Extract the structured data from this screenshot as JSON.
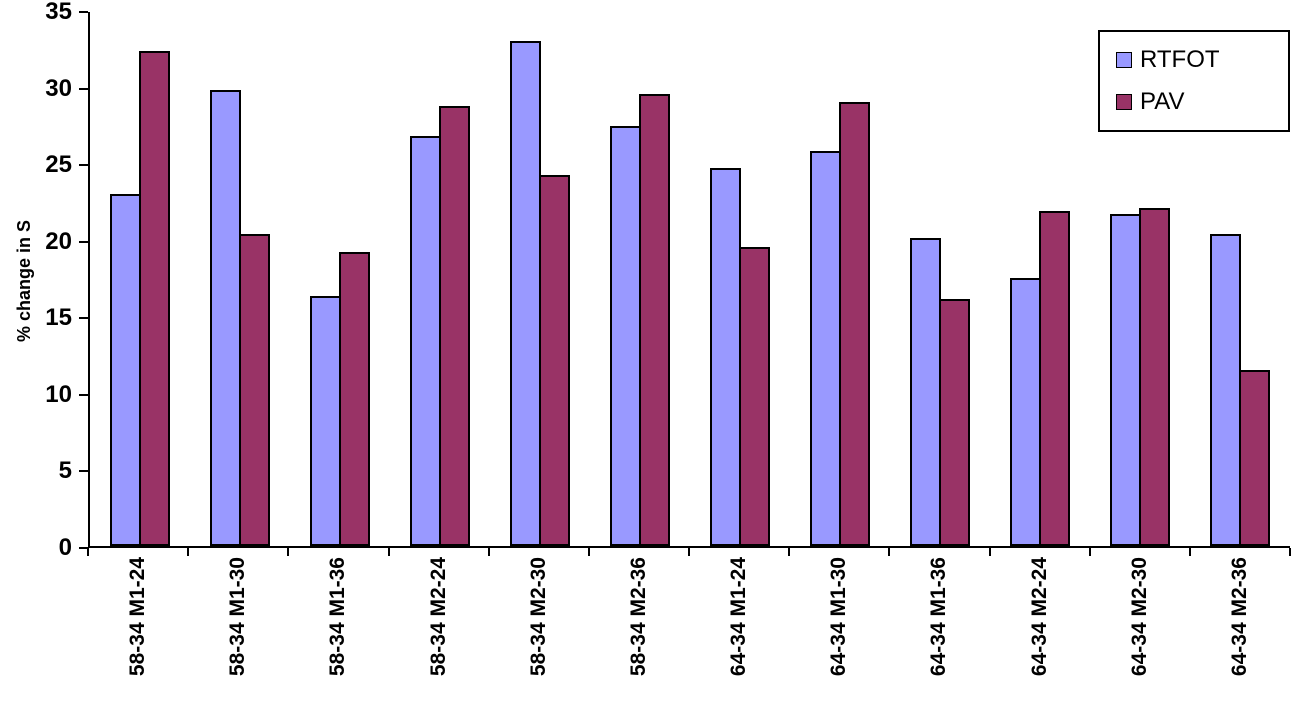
{
  "chart_data": {
    "type": "bar",
    "title": "",
    "xlabel": "",
    "ylabel": "% change in S",
    "ylim": [
      0,
      35
    ],
    "ymax": 35,
    "yticks": [
      0,
      5,
      10,
      15,
      20,
      25,
      30,
      35
    ],
    "grid": false,
    "legend_position": "top-right",
    "categories": [
      "58-34 M1-24",
      "58-34 M1-30",
      "58-34 M1-36",
      "58-34 M2-24",
      "58-34 M2-30",
      "58-34 M2-36",
      "64-34 M1-24",
      "64-34 M1-30",
      "64-34 M1-36",
      "64-34 M2-24",
      "64-34 M2-30",
      "64-34 M2-36"
    ],
    "series": [
      {
        "name": "RTFOT",
        "color": "#9999FF",
        "values": [
          23.0,
          29.8,
          16.3,
          26.8,
          33.0,
          27.4,
          24.7,
          25.8,
          20.1,
          17.5,
          21.7,
          20.4
        ]
      },
      {
        "name": "PAV",
        "color": "#993366",
        "values": [
          32.3,
          20.4,
          19.2,
          28.7,
          24.2,
          29.5,
          19.5,
          29.0,
          16.1,
          21.9,
          22.1,
          11.5
        ]
      }
    ]
  },
  "colors": {
    "background": "#ffffff",
    "axis": "#000000",
    "bar_border": "#000000"
  }
}
